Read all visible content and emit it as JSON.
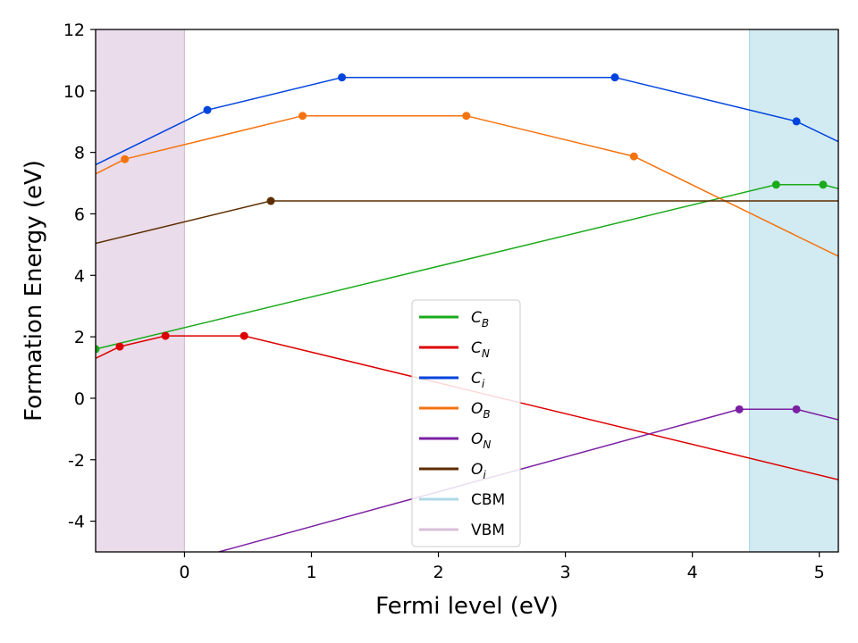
{
  "chart_data": {
    "type": "line",
    "title": "",
    "xlabel": "Fermi level (eV)",
    "ylabel": "Formation Energy (eV)",
    "xlim": [
      -0.7,
      5.15
    ],
    "ylim": [
      -5,
      12
    ],
    "xticks": [
      0,
      1,
      2,
      3,
      4,
      5
    ],
    "yticks": [
      -4,
      -2,
      0,
      2,
      4,
      6,
      8,
      10,
      12
    ],
    "grid": false,
    "legend_position": "lower center",
    "bands": [
      {
        "name": "VBM",
        "from": -0.7,
        "to": 0.0,
        "color": "#d8bfd8"
      },
      {
        "name": "CBM",
        "from": 4.45,
        "to": 5.15,
        "color": "#add8e6"
      }
    ],
    "series": [
      {
        "name": "C_B",
        "base": "C",
        "sub": "B",
        "color": "#1aab1a",
        "line": [
          [
            -0.7,
            1.6
          ],
          [
            4.66,
            6.95
          ],
          [
            5.03,
            6.95
          ],
          [
            5.15,
            6.82
          ]
        ],
        "markers": [
          [
            -0.7,
            1.6
          ],
          [
            4.66,
            6.95
          ],
          [
            5.03,
            6.95
          ]
        ]
      },
      {
        "name": "C_N",
        "base": "C",
        "sub": "N",
        "color": "#dd0000",
        "line": [
          [
            -0.7,
            1.3
          ],
          [
            -0.51,
            1.68
          ],
          [
            -0.15,
            2.03
          ],
          [
            0.47,
            2.03
          ],
          [
            5.15,
            -2.65
          ]
        ],
        "markers": [
          [
            -0.51,
            1.68
          ],
          [
            -0.15,
            2.03
          ],
          [
            0.47,
            2.03
          ]
        ]
      },
      {
        "name": "C_i",
        "base": "C",
        "sub": "i",
        "color": "#0044dd",
        "line": [
          [
            -0.7,
            7.6
          ],
          [
            0.18,
            9.38
          ],
          [
            1.24,
            10.44
          ],
          [
            3.39,
            10.44
          ],
          [
            4.82,
            9.01
          ],
          [
            5.15,
            8.35
          ]
        ],
        "markers": [
          [
            0.18,
            9.38
          ],
          [
            1.24,
            10.44
          ],
          [
            3.39,
            10.44
          ],
          [
            4.82,
            9.01
          ]
        ]
      },
      {
        "name": "O_B",
        "base": "O",
        "sub": "B",
        "color": "#f5730f",
        "line": [
          [
            -0.7,
            7.3
          ],
          [
            -0.47,
            7.78
          ],
          [
            0.93,
            9.19
          ],
          [
            2.22,
            9.19
          ],
          [
            3.54,
            7.87
          ],
          [
            5.15,
            4.62
          ]
        ],
        "markers": [
          [
            -0.47,
            7.78
          ],
          [
            0.93,
            9.19
          ],
          [
            2.22,
            9.19
          ],
          [
            3.54,
            7.87
          ]
        ]
      },
      {
        "name": "O_N",
        "base": "O",
        "sub": "N",
        "color": "#7b1fa2",
        "line": [
          [
            0.27,
            -5.0
          ],
          [
            4.37,
            -0.36
          ],
          [
            4.82,
            -0.36
          ],
          [
            5.15,
            -0.7
          ]
        ],
        "markers": [
          [
            4.37,
            -0.36
          ],
          [
            4.82,
            -0.36
          ]
        ]
      },
      {
        "name": "O_i",
        "base": "O",
        "sub": "i",
        "color": "#5c2e00",
        "line": [
          [
            -0.7,
            5.04
          ],
          [
            0.68,
            6.42
          ],
          [
            5.15,
            6.42
          ]
        ],
        "markers": [
          [
            0.68,
            6.42
          ]
        ]
      }
    ],
    "legend": [
      {
        "name": "C_B",
        "base": "C",
        "sub": "B",
        "color": "#1aab1a",
        "italic": true
      },
      {
        "name": "C_N",
        "base": "C",
        "sub": "N",
        "color": "#dd0000",
        "italic": true
      },
      {
        "name": "C_i",
        "base": "C",
        "sub": "i",
        "color": "#0044dd",
        "italic": true
      },
      {
        "name": "O_B",
        "base": "O",
        "sub": "B",
        "color": "#f5730f",
        "italic": true
      },
      {
        "name": "O_N",
        "base": "O",
        "sub": "N",
        "color": "#7b1fa2",
        "italic": true
      },
      {
        "name": "O_i",
        "base": "O",
        "sub": "i",
        "color": "#5c2e00",
        "italic": true
      },
      {
        "name": "CBM",
        "base": "CBM",
        "sub": "",
        "color": "#add8e6",
        "italic": false
      },
      {
        "name": "VBM",
        "base": "VBM",
        "sub": "",
        "color": "#d8bfd8",
        "italic": false
      }
    ]
  }
}
